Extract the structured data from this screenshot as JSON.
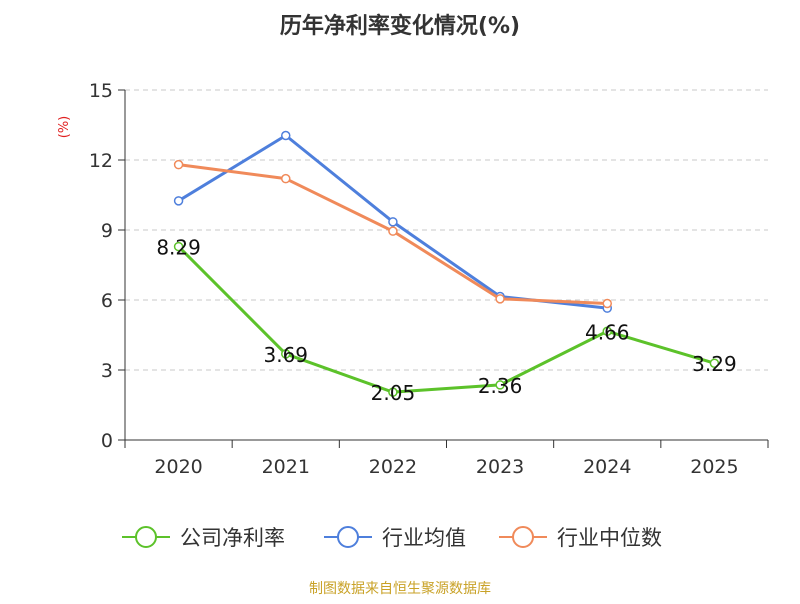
{
  "chart_data": {
    "type": "line",
    "title": "历年净利率变化情况(%)",
    "ylabel": "(%)",
    "xlabel": "",
    "ylim": [
      0,
      15
    ],
    "yticks": [
      0,
      3,
      6,
      9,
      12,
      15
    ],
    "categories": [
      "2020",
      "2021",
      "2022",
      "2023",
      "2024",
      "2025"
    ],
    "grid": "horizontal-dashed",
    "legend_position": "bottom",
    "series": [
      {
        "name": "公司净利率",
        "color": "#5cc22a",
        "values": [
          8.29,
          3.69,
          2.05,
          2.36,
          4.66,
          3.29
        ],
        "labels": [
          "8.29",
          "3.69",
          "2.05",
          "2.36",
          "4.66",
          "3.29"
        ]
      },
      {
        "name": "行业均值",
        "color": "#4e7fdc",
        "values": [
          10.25,
          13.05,
          9.35,
          6.15,
          5.65,
          null
        ]
      },
      {
        "name": "行业中位数",
        "color": "#f08a5a",
        "values": [
          11.8,
          11.2,
          8.95,
          6.05,
          5.85,
          null
        ]
      }
    ],
    "source": "制图数据来自恒生聚源数据库",
    "ylabel_color": "#e02020",
    "source_color": "#c9a227"
  }
}
